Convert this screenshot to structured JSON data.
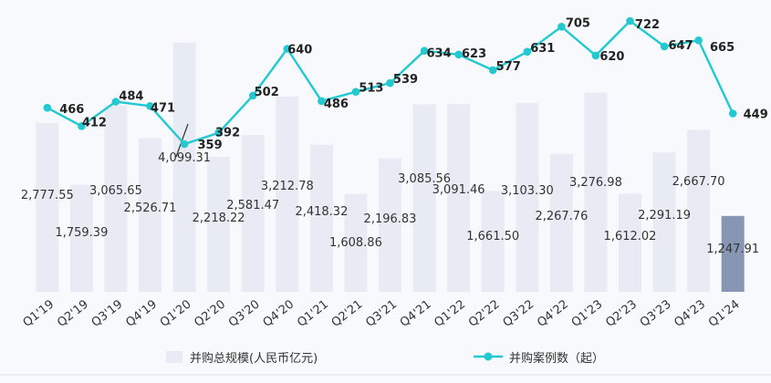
{
  "chart_data": {
    "type": "bar",
    "categories": [
      "Q1'19",
      "Q2'19",
      "Q3'19",
      "Q4'19",
      "Q1'20",
      "Q2'20",
      "Q3'20",
      "Q4'20",
      "Q1'21",
      "Q2'21",
      "Q3'21",
      "Q4'21",
      "Q1'22",
      "Q2'22",
      "Q3'22",
      "Q4'22",
      "Q1'23",
      "Q2'23",
      "Q3'23",
      "Q4'23",
      "Q1'24"
    ],
    "series": [
      {
        "name": "并购总规模(人民币亿元)",
        "type": "bar",
        "axis": "left",
        "values": [
          2777.55,
          1759.39,
          3065.65,
          2526.71,
          4099.31,
          2218.22,
          2581.47,
          3212.78,
          2418.32,
          1608.86,
          2196.83,
          3085.56,
          3091.46,
          1661.5,
          3103.3,
          2267.76,
          3276.98,
          1612.02,
          2291.19,
          2667.7,
          1247.91
        ],
        "labels": [
          "2,777.55",
          "1,759.39",
          "3,065.65",
          "2,526.71",
          "4,099.31",
          "2,218.22",
          "2,581.47",
          "3,212.78",
          "2,418.32",
          "1,608.86",
          "2,196.83",
          "3,085.56",
          "3,091.46",
          "1,661.50",
          "3,103.30",
          "2,267.76",
          "3,276.98",
          "1,612.02",
          "2,291.19",
          "2,667.70",
          "1,247.91"
        ],
        "color": "#e8ebf3",
        "highlight_color": "#8796b3",
        "highlight_index": 20
      },
      {
        "name": "并购案例数（起）",
        "type": "line",
        "axis": "right",
        "values": [
          466,
          412,
          484,
          471,
          359,
          392,
          502,
          640,
          486,
          513,
          539,
          634,
          623,
          577,
          631,
          705,
          620,
          722,
          647,
          665,
          449
        ],
        "color": "#22c9d0"
      }
    ],
    "bar_ylim": [
      0,
      4500
    ],
    "line_ylim": [
      100,
      750
    ],
    "grid": false,
    "legend_position": "bottom"
  },
  "legend": {
    "bar_label": "并购总规模(人民币亿元)",
    "line_label": "并购案例数（起）"
  }
}
